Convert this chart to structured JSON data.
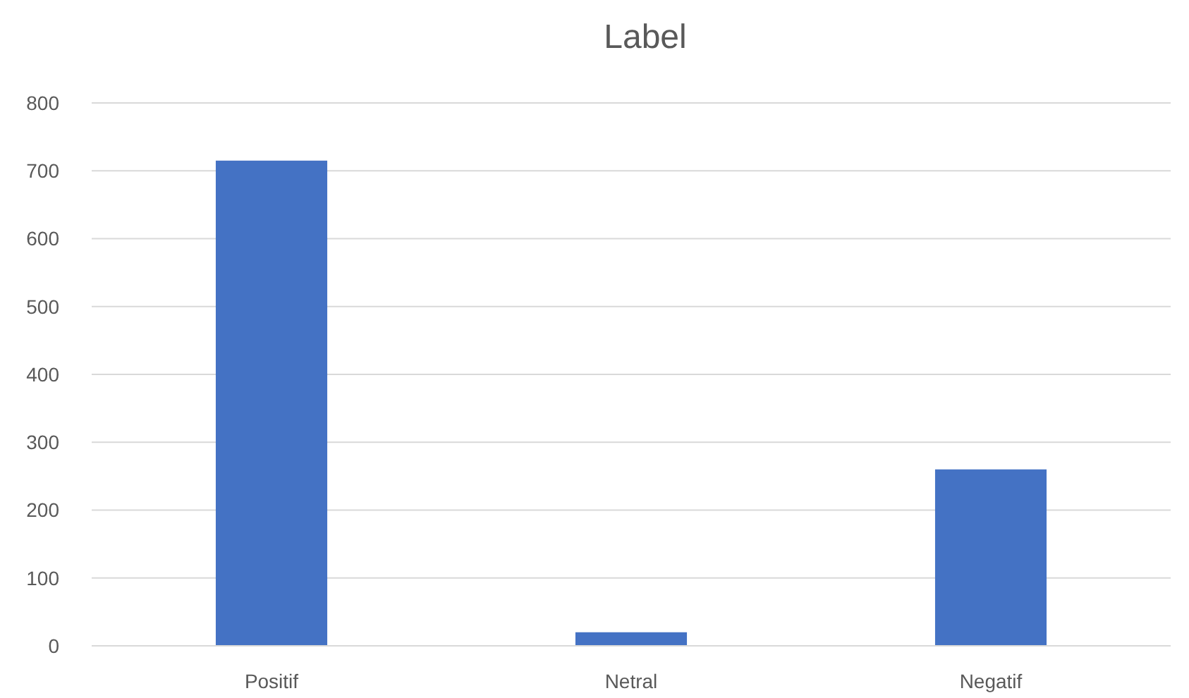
{
  "chart_data": {
    "type": "bar",
    "title": "Label",
    "categories": [
      "Positif",
      "Netral",
      "Negatif"
    ],
    "values": [
      715,
      20,
      260
    ],
    "color": "#4472c4",
    "ylim": [
      0,
      800
    ],
    "yticks": [
      0,
      100,
      200,
      300,
      400,
      500,
      600,
      700,
      800
    ],
    "grid": "y"
  }
}
